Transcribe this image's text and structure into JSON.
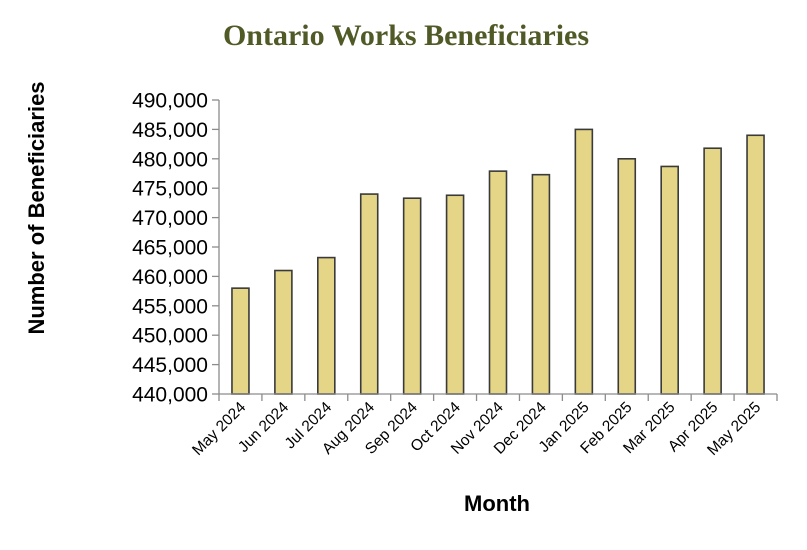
{
  "chart_data": {
    "type": "bar",
    "title": "Ontario Works Beneficiaries",
    "xlabel": "Month",
    "ylabel": "Number of Beneficiaries",
    "categories": [
      "May 2024",
      "Jun 2024",
      "Jul 2024",
      "Aug 2024",
      "Sep 2024",
      "Oct 2024",
      "Nov 2024",
      "Dec 2024",
      "Jan 2025",
      "Feb 2025",
      "Mar 2025",
      "Apr 2025",
      "May 2025"
    ],
    "values": [
      458000,
      461000,
      463200,
      474000,
      473300,
      473800,
      477900,
      477300,
      485000,
      480000,
      478700,
      481800,
      484000
    ],
    "ylim": [
      440000,
      490000
    ],
    "yticks": [
      440000,
      445000,
      450000,
      455000,
      460000,
      465000,
      470000,
      475000,
      480000,
      485000,
      490000
    ],
    "ytick_labels": [
      "440,000",
      "445,000",
      "450,000",
      "455,000",
      "460,000",
      "465,000",
      "470,000",
      "475,000",
      "480,000",
      "485,000",
      "490,000"
    ],
    "grid": false,
    "legend": "none",
    "colors": {
      "title": "#4f5a26",
      "bar_fill": "#e4d686",
      "bar_stroke": "#3a3a3a",
      "axis": "#8c8c8c",
      "text": "#000000"
    }
  }
}
